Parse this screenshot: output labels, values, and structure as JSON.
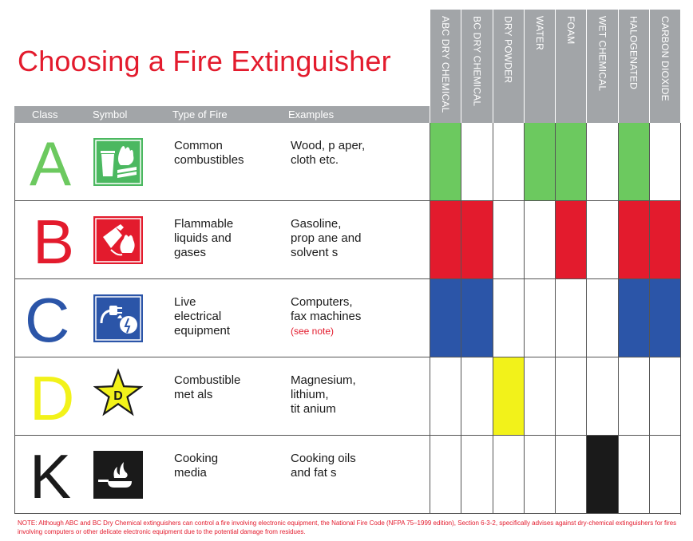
{
  "title": "Choosing a Fire Extinguisher",
  "headers": {
    "class": "Class",
    "symbol": "Symbol",
    "type": "Type of Fire",
    "examples": "Examples"
  },
  "extinguishers": [
    "ABC DRY CHEMICAL",
    "BC DRY CHEMICAL",
    "DRY POWDER",
    "WATER",
    "FOAM",
    "WET CHEMICAL",
    "HALOGENATED",
    "CARBON DIOXIDE"
  ],
  "rows": [
    {
      "letter": "A",
      "color": "#6cc95f",
      "symbol_icon": "trash-and-wood-fire-icon",
      "symbol_bg": "#4bb860",
      "type": "Common\ncombustibles",
      "examples": "Wood, p aper,\ncloth etc.",
      "note": "",
      "compat": [
        1,
        0,
        0,
        1,
        1,
        0,
        1,
        0
      ]
    },
    {
      "letter": "B",
      "color": "#e31b2d",
      "symbol_icon": "fuel-can-fire-icon",
      "symbol_bg": "#e31b2d",
      "type": "Flammable\nliquids and\ngases",
      "examples": "Gasoline,\nprop ane and\nsolvent s",
      "note": "",
      "compat": [
        1,
        1,
        0,
        0,
        1,
        0,
        1,
        1
      ]
    },
    {
      "letter": "C",
      "color": "#2b55a8",
      "symbol_icon": "electrical-plug-fire-icon",
      "symbol_bg": "#2b55a8",
      "type": "Live\nelectrical\nequipment",
      "examples": "Computers,\nfax machines",
      "note": "(see note)",
      "compat": [
        1,
        1,
        0,
        0,
        0,
        0,
        1,
        1
      ]
    },
    {
      "letter": "D",
      "color": "#f2f21a",
      "symbol_icon": "star-d-icon",
      "symbol_bg": "#f2f21a",
      "type": "Combustible\nmet als",
      "examples": "Magnesium,\nlithium,\ntit anium",
      "note": "",
      "compat": [
        0,
        0,
        1,
        0,
        0,
        0,
        0,
        0
      ]
    },
    {
      "letter": "K",
      "color": "#1a1a1a",
      "symbol_icon": "frying-pan-fire-icon",
      "symbol_bg": "#1a1a1a",
      "type": "Cooking\nmedia",
      "examples": "Cooking oils\nand fat s",
      "note": "",
      "compat": [
        0,
        0,
        0,
        0,
        0,
        1,
        0,
        0
      ]
    }
  ],
  "footnote": "NOTE: Although ABC and BC Dry Chemical extinguishers can control a fire involving electronic equipment, the National Fire Code (NFPA 75–1999 edition), Section 6-3-2, specifically advises against dry-chemical extinguishers for fires involving computers or other delicate electronic equipment due to the potential damage from residues."
}
